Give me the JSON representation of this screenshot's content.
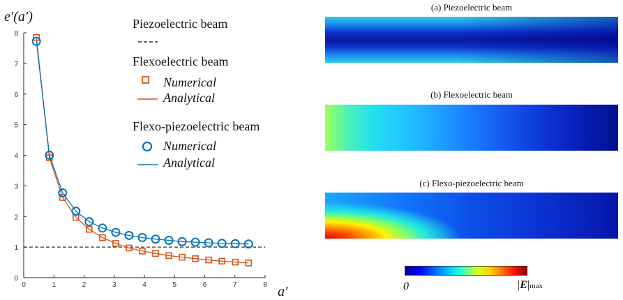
{
  "chart_data": {
    "type": "line",
    "ylabel": "e′(a′)",
    "xlabel": "a′",
    "xlim": [
      0,
      8
    ],
    "ylim": [
      0,
      8
    ],
    "xticks": [
      0,
      1,
      2,
      3,
      4,
      5,
      6,
      7,
      8
    ],
    "yticks": [
      0,
      1,
      2,
      3,
      4,
      5,
      6,
      7,
      8
    ],
    "grid": false,
    "legend_placement": "top-right",
    "series": [
      {
        "name": "Piezoelectric beam",
        "style": "dashed",
        "color": "#000000",
        "x": [
          0,
          8
        ],
        "y": [
          1.0,
          1.0
        ]
      },
      {
        "name": "Flexoelectric beam",
        "color": "#d95319",
        "numerical_label": "Numerical",
        "analytical_label": "Analytical",
        "marker": "square",
        "x": [
          0.42,
          0.85,
          1.29,
          1.73,
          2.17,
          2.61,
          3.05,
          3.49,
          3.93,
          4.37,
          4.81,
          5.25,
          5.69,
          6.13,
          6.57,
          7.01,
          7.45
        ],
        "y": [
          7.85,
          3.92,
          2.62,
          1.97,
          1.58,
          1.31,
          1.12,
          0.97,
          0.87,
          0.79,
          0.72,
          0.67,
          0.62,
          0.58,
          0.54,
          0.51,
          0.48
        ]
      },
      {
        "name": "Flexo-piezoelectric beam",
        "color": "#0072bd",
        "numerical_label": "Numerical",
        "analytical_label": "Analytical",
        "marker": "circle",
        "x": [
          0.42,
          0.85,
          1.29,
          1.73,
          2.17,
          2.61,
          3.05,
          3.49,
          3.93,
          4.37,
          4.81,
          5.25,
          5.69,
          6.13,
          6.57,
          7.01,
          7.45
        ],
        "y": [
          7.72,
          4.0,
          2.77,
          2.17,
          1.83,
          1.62,
          1.48,
          1.38,
          1.31,
          1.26,
          1.22,
          1.18,
          1.16,
          1.14,
          1.12,
          1.11,
          1.1
        ]
      }
    ]
  },
  "panels": [
    {
      "title": "(a) Piezoelectric beam"
    },
    {
      "title": "(b) Flexoelectric beam"
    },
    {
      "title": "(c) Flexo-piezoelectric beam"
    }
  ],
  "colorbar": {
    "min_label": "0",
    "max_label": "|E|",
    "max_subscript": "max"
  }
}
